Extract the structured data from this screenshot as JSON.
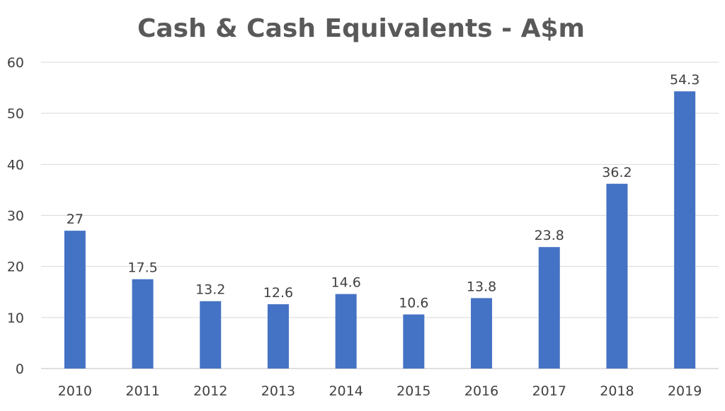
{
  "chart_data": {
    "type": "bar",
    "title": "Cash & Cash Equivalents - A$m",
    "xlabel": "",
    "ylabel": "",
    "categories": [
      "2010",
      "2011",
      "2012",
      "2013",
      "2014",
      "2015",
      "2016",
      "2017",
      "2018",
      "2019"
    ],
    "values": [
      27,
      17.5,
      13.2,
      12.6,
      14.6,
      10.6,
      13.8,
      23.8,
      36.2,
      54.3
    ],
    "data_labels": [
      "27",
      "17.5",
      "13.2",
      "12.6",
      "14.6",
      "10.6",
      "13.8",
      "23.8",
      "36.2",
      "54.3"
    ],
    "ylim": [
      0,
      60
    ],
    "yticks": [
      0,
      10,
      20,
      30,
      40,
      50,
      60
    ],
    "ytick_labels": [
      "0",
      "10",
      "20",
      "30",
      "40",
      "50",
      "60"
    ],
    "grid": true,
    "legend": "none",
    "colors": {
      "bar": "#4472C4",
      "title": "#595959",
      "text": "#404040",
      "grid": "#D9D9D9"
    }
  }
}
